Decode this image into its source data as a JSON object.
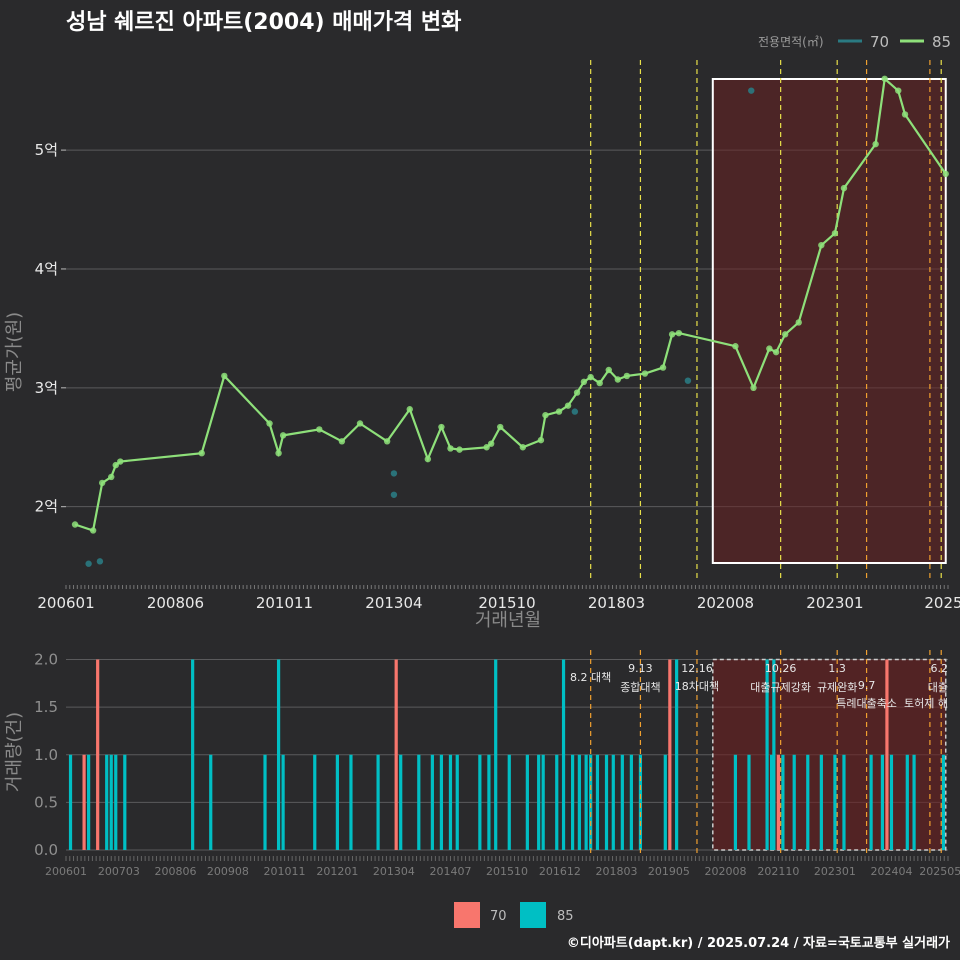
{
  "chart_data": [
    {
      "type": "line",
      "title": "성남 쉐르진 아파트(2004) 매매가격 변화",
      "xlabel": "거래년월",
      "ylabel": "평균가(원)",
      "x_tick_labels": [
        "200601",
        "200806",
        "201011",
        "201304",
        "201510",
        "201803",
        "202008",
        "202301",
        "2025"
      ],
      "y_ticks": [
        {
          "v": 2,
          "label": "2억"
        },
        {
          "v": 3,
          "label": "3억"
        },
        {
          "v": 4,
          "label": "4억"
        },
        {
          "v": 5,
          "label": "5억"
        }
      ],
      "ylim": [
        1.4,
        5.8
      ],
      "xlim": [
        2006.0,
        2025.5
      ],
      "legend_title": "전용면적(㎡)",
      "legend_position": "top-right",
      "highlight_period": [
        2020.3,
        2025.45
      ],
      "series": [
        {
          "name": "70",
          "color": "#2a7a82",
          "points": [
            [
              2006.5,
              1.52
            ],
            [
              2006.75,
              1.54
            ],
            [
              2013.25,
              2.28
            ],
            [
              2013.25,
              2.1
            ],
            [
              2017.25,
              2.8
            ],
            [
              2019.75,
              3.06
            ],
            [
              2021.15,
              5.5
            ]
          ]
        },
        {
          "name": "85",
          "color": "#8ee07a",
          "points": [
            [
              2006.2,
              1.85
            ],
            [
              2006.6,
              1.8
            ],
            [
              2006.8,
              2.2
            ],
            [
              2007.0,
              2.25
            ],
            [
              2007.1,
              2.35
            ],
            [
              2007.2,
              2.38
            ],
            [
              2009.0,
              2.45
            ],
            [
              2009.5,
              3.1
            ],
            [
              2010.5,
              2.7
            ],
            [
              2010.7,
              2.45
            ],
            [
              2010.8,
              2.6
            ],
            [
              2011.6,
              2.65
            ],
            [
              2012.1,
              2.55
            ],
            [
              2012.5,
              2.7
            ],
            [
              2013.1,
              2.55
            ],
            [
              2013.6,
              2.82
            ],
            [
              2014.0,
              2.4
            ],
            [
              2014.3,
              2.67
            ],
            [
              2014.5,
              2.49
            ],
            [
              2014.7,
              2.48
            ],
            [
              2015.3,
              2.5
            ],
            [
              2015.4,
              2.53
            ],
            [
              2015.6,
              2.67
            ],
            [
              2016.1,
              2.5
            ],
            [
              2016.5,
              2.56
            ],
            [
              2016.6,
              2.77
            ],
            [
              2016.9,
              2.8
            ],
            [
              2017.1,
              2.85
            ],
            [
              2017.3,
              2.96
            ],
            [
              2017.45,
              3.05
            ],
            [
              2017.6,
              3.09
            ],
            [
              2017.8,
              3.04
            ],
            [
              2018.0,
              3.15
            ],
            [
              2018.2,
              3.07
            ],
            [
              2018.4,
              3.1
            ],
            [
              2018.8,
              3.12
            ],
            [
              2019.2,
              3.17
            ],
            [
              2019.4,
              3.45
            ],
            [
              2019.55,
              3.46
            ],
            [
              2020.8,
              3.35
            ],
            [
              2021.2,
              3.0
            ],
            [
              2021.55,
              3.33
            ],
            [
              2021.7,
              3.3
            ],
            [
              2021.9,
              3.45
            ],
            [
              2022.2,
              3.55
            ],
            [
              2022.7,
              4.2
            ],
            [
              2023.0,
              4.3
            ],
            [
              2023.2,
              4.68
            ],
            [
              2023.9,
              5.05
            ],
            [
              2024.1,
              5.6
            ],
            [
              2024.4,
              5.5
            ],
            [
              2024.55,
              5.3
            ],
            [
              2025.45,
              4.8
            ]
          ]
        }
      ]
    },
    {
      "type": "bar",
      "ylabel": "거래량(건)",
      "y_ticks": [
        {
          "v": 0,
          "label": "0.0"
        },
        {
          "v": 0.5,
          "label": "0.5"
        },
        {
          "v": 1,
          "label": "1.0"
        },
        {
          "v": 1.5,
          "label": "1.5"
        },
        {
          "v": 2,
          "label": "2.0"
        }
      ],
      "ylim": [
        0,
        2.1
      ],
      "xlim": [
        2006.0,
        2025.5
      ],
      "x_tick_labels": [
        "200601",
        "200703",
        "200806",
        "200908",
        "201011",
        "201201",
        "201304",
        "201407",
        "201510",
        "201612",
        "201803",
        "201905",
        "202008",
        "202110",
        "202301",
        "202404",
        "202505"
      ],
      "legend": [
        {
          "name": "70",
          "color": "#f8766d"
        },
        {
          "name": "85",
          "color": "#00bfc4"
        }
      ],
      "legend_position": "bottom",
      "highlight_period": [
        2020.3,
        2025.45
      ],
      "series": [
        {
          "name": "70",
          "color": "#f8766d",
          "bars": [
            [
              2006.4,
              1
            ],
            [
              2006.7,
              2
            ],
            [
              2013.3,
              2
            ],
            [
              2019.35,
              2
            ],
            [
              2021.75,
              1
            ],
            [
              2024.15,
              2
            ]
          ]
        },
        {
          "name": "85",
          "color": "#00bfc4",
          "bars": [
            [
              2006.1,
              1
            ],
            [
              2006.5,
              1
            ],
            [
              2006.9,
              1
            ],
            [
              2007.0,
              1
            ],
            [
              2007.1,
              1
            ],
            [
              2007.3,
              1
            ],
            [
              2008.8,
              2
            ],
            [
              2009.2,
              1
            ],
            [
              2010.4,
              1
            ],
            [
              2010.7,
              2
            ],
            [
              2010.8,
              1
            ],
            [
              2011.5,
              1
            ],
            [
              2012.0,
              1
            ],
            [
              2012.3,
              1
            ],
            [
              2012.9,
              1
            ],
            [
              2013.4,
              1
            ],
            [
              2013.8,
              1
            ],
            [
              2014.1,
              1
            ],
            [
              2014.3,
              1
            ],
            [
              2014.5,
              1
            ],
            [
              2014.65,
              1
            ],
            [
              2015.15,
              1
            ],
            [
              2015.35,
              1
            ],
            [
              2015.5,
              2
            ],
            [
              2015.8,
              1
            ],
            [
              2016.2,
              1
            ],
            [
              2016.45,
              1
            ],
            [
              2016.55,
              1
            ],
            [
              2016.85,
              1
            ],
            [
              2017.0,
              2
            ],
            [
              2017.2,
              1
            ],
            [
              2017.35,
              1
            ],
            [
              2017.5,
              1
            ],
            [
              2017.6,
              1
            ],
            [
              2017.75,
              1
            ],
            [
              2017.95,
              1
            ],
            [
              2018.1,
              1
            ],
            [
              2018.3,
              1
            ],
            [
              2018.5,
              1
            ],
            [
              2018.7,
              1
            ],
            [
              2019.25,
              1
            ],
            [
              2019.5,
              2
            ],
            [
              2020.8,
              1
            ],
            [
              2021.1,
              1
            ],
            [
              2021.5,
              2
            ],
            [
              2021.6,
              1
            ],
            [
              2021.65,
              2
            ],
            [
              2021.85,
              1
            ],
            [
              2022.1,
              1
            ],
            [
              2022.4,
              1
            ],
            [
              2022.7,
              1
            ],
            [
              2023.0,
              1
            ],
            [
              2023.2,
              1
            ],
            [
              2023.8,
              1
            ],
            [
              2024.05,
              1
            ],
            [
              2024.25,
              1
            ],
            [
              2024.6,
              1
            ],
            [
              2024.75,
              1
            ],
            [
              2025.4,
              1
            ]
          ]
        }
      ]
    }
  ],
  "policies": [
    {
      "x": 2017.6,
      "date": "8.2",
      "name": "8.2 대책",
      "color": "#e8e04a"
    },
    {
      "x": 2018.7,
      "date": "9.13",
      "name": "종합대책",
      "color": "#e8e04a"
    },
    {
      "x": 2019.95,
      "date": "12.16",
      "name": "18차대책",
      "color": "#e8e04a"
    },
    {
      "x": 2021.8,
      "date": "10.26",
      "name": "대출규제강화",
      "color": "#e8e04a"
    },
    {
      "x": 2023.05,
      "date": "1.3",
      "name": "규제완화",
      "color": "#e8e04a"
    },
    {
      "x": 2023.7,
      "date": "9.7",
      "name": "특례대출축소",
      "color": "#f0a030"
    },
    {
      "x": 2025.1,
      "date": "",
      "name": "토허제 해",
      "color": "#f0a030"
    },
    {
      "x": 2025.35,
      "date": "6.2",
      "name": "대출",
      "color": "#e8e04a"
    }
  ],
  "footer": "©디아파트(dapt.kr) / 2025.07.24 / 자료=국토교통부 실거래가"
}
